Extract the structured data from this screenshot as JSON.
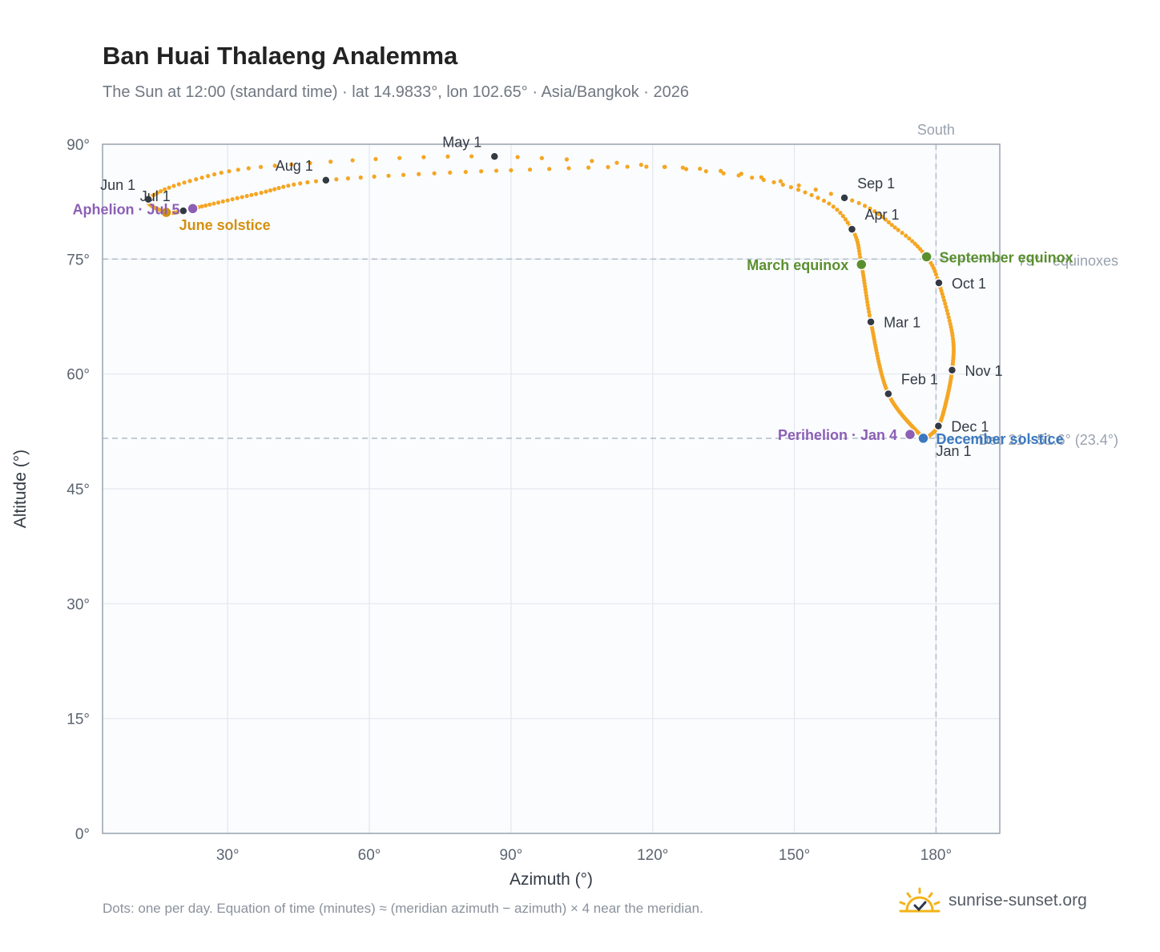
{
  "title": "Ban Huai Thalaeng Analemma",
  "subtitle": "The Sun at 12:00 (standard time) · lat 14.9833°, lon 102.65° · Asia/Bangkok · 2026",
  "footnote": "Dots: one per day. Equation of time (minutes) ≈ (meridian azimuth − azimuth) × 4 near the meridian.",
  "brand": "sunrise-sunset.org",
  "chart_data": {
    "type": "scatter",
    "xlabel": "Azimuth (°)",
    "ylabel": "Altitude (°)",
    "xlim": [
      3.5,
      193.5
    ],
    "ylim": [
      0,
      90
    ],
    "xticks": [
      30,
      60,
      90,
      120,
      150,
      180
    ],
    "yticks": [
      0,
      15,
      30,
      45,
      60,
      75,
      90
    ],
    "xtick_labels": [
      "30°",
      "60°",
      "90°",
      "120°",
      "150°",
      "180°"
    ],
    "ytick_labels": [
      "0°",
      "15°",
      "30°",
      "45°",
      "60°",
      "75°",
      "90°"
    ],
    "grid": true,
    "series_color": "#f5a623",
    "reference_lines": [
      {
        "orientation": "vertical",
        "x": 180,
        "label": "South"
      },
      {
        "orientation": "horizontal",
        "y": 75,
        "label": "75° · equinoxes"
      },
      {
        "orientation": "horizontal",
        "y": 51.6,
        "label": "Dec 21 · 51.6° (23.4°)"
      }
    ],
    "path_keypoints": [
      {
        "day": 0,
        "az": 177.3,
        "alt": 51.6
      },
      {
        "day": 31,
        "az": 169.9,
        "alt": 57.4
      },
      {
        "day": 59,
        "az": 166.2,
        "alt": 66.8
      },
      {
        "day": 78,
        "az": 164.2,
        "alt": 74.3
      },
      {
        "day": 90,
        "az": 162.2,
        "alt": 78.9
      },
      {
        "day": 100,
        "az": 155.0,
        "alt": 83.0
      },
      {
        "day": 110,
        "az": 135.0,
        "alt": 86.2
      },
      {
        "day": 120,
        "az": 86.5,
        "alt": 88.4
      },
      {
        "day": 130,
        "az": 40.0,
        "alt": 87.2
      },
      {
        "day": 140,
        "az": 22.0,
        "alt": 85.2
      },
      {
        "day": 151,
        "az": 13.2,
        "alt": 82.8
      },
      {
        "day": 171,
        "az": 17.0,
        "alt": 81.1
      },
      {
        "day": 181,
        "az": 20.6,
        "alt": 81.3
      },
      {
        "day": 185,
        "az": 22.6,
        "alt": 81.6
      },
      {
        "day": 200,
        "az": 36.0,
        "alt": 83.5
      },
      {
        "day": 212,
        "az": 50.8,
        "alt": 85.3
      },
      {
        "day": 225,
        "az": 90.0,
        "alt": 86.6
      },
      {
        "day": 235,
        "az": 130.0,
        "alt": 86.8
      },
      {
        "day": 243,
        "az": 160.6,
        "alt": 83.0
      },
      {
        "day": 255,
        "az": 172.0,
        "alt": 78.8
      },
      {
        "day": 265,
        "az": 178.0,
        "alt": 75.3
      },
      {
        "day": 273,
        "az": 180.6,
        "alt": 71.9
      },
      {
        "day": 290,
        "az": 183.5,
        "alt": 65.0
      },
      {
        "day": 304,
        "az": 183.4,
        "alt": 60.5
      },
      {
        "day": 320,
        "az": 182.0,
        "alt": 56.0
      },
      {
        "day": 334,
        "az": 180.5,
        "alt": 53.2
      },
      {
        "day": 345,
        "az": 178.3,
        "alt": 51.8
      },
      {
        "day": 354,
        "az": 177.3,
        "alt": 51.6
      },
      {
        "day": 365,
        "az": 177.3,
        "alt": 51.6
      }
    ],
    "month_markers": [
      {
        "label": "Jan 1",
        "az": 177.3,
        "alt": 51.6,
        "label_pos": "below-right"
      },
      {
        "label": "Feb 1",
        "az": 169.9,
        "alt": 57.4,
        "label_pos": "above-right"
      },
      {
        "label": "Mar 1",
        "az": 166.2,
        "alt": 66.8,
        "label_pos": "right"
      },
      {
        "label": "Apr 1",
        "az": 162.2,
        "alt": 78.9,
        "label_pos": "above-right"
      },
      {
        "label": "May 1",
        "az": 86.5,
        "alt": 88.4,
        "label_pos": "above-left"
      },
      {
        "label": "Jun 1",
        "az": 13.2,
        "alt": 82.8,
        "label_pos": "above-left"
      },
      {
        "label": "Jul 1",
        "az": 20.6,
        "alt": 81.3,
        "label_pos": "above-left"
      },
      {
        "label": "Aug 1",
        "az": 50.8,
        "alt": 85.3,
        "label_pos": "above-left"
      },
      {
        "label": "Sep 1",
        "az": 160.6,
        "alt": 83.0,
        "label_pos": "above-right"
      },
      {
        "label": "Oct 1",
        "az": 180.6,
        "alt": 71.9,
        "label_pos": "right"
      },
      {
        "label": "Nov 1",
        "az": 183.4,
        "alt": 60.5,
        "label_pos": "right"
      },
      {
        "label": "Dec 1",
        "az": 180.5,
        "alt": 53.2,
        "label_pos": "right"
      }
    ],
    "events": [
      {
        "label": "March equinox",
        "az": 164.2,
        "alt": 74.3,
        "color": "#5a8f2e",
        "label_pos": "left"
      },
      {
        "label": "September equinox",
        "az": 178.0,
        "alt": 75.3,
        "color": "#5a8f2e",
        "label_pos": "right"
      },
      {
        "label": "June solstice",
        "az": 17.0,
        "alt": 81.1,
        "color": "#d4900f",
        "label_pos": "below-right"
      },
      {
        "label": "December solstice",
        "az": 177.3,
        "alt": 51.6,
        "color": "#3a78c0",
        "label_pos": "right"
      },
      {
        "label": "Aphelion · Jul 5",
        "az": 22.6,
        "alt": 81.6,
        "color": "#8c5fb5",
        "label_pos": "left"
      },
      {
        "label": "Perihelion · Jan 4",
        "az": 174.5,
        "alt": 52.1,
        "color": "#8c5fb5",
        "label_pos": "left"
      }
    ]
  }
}
